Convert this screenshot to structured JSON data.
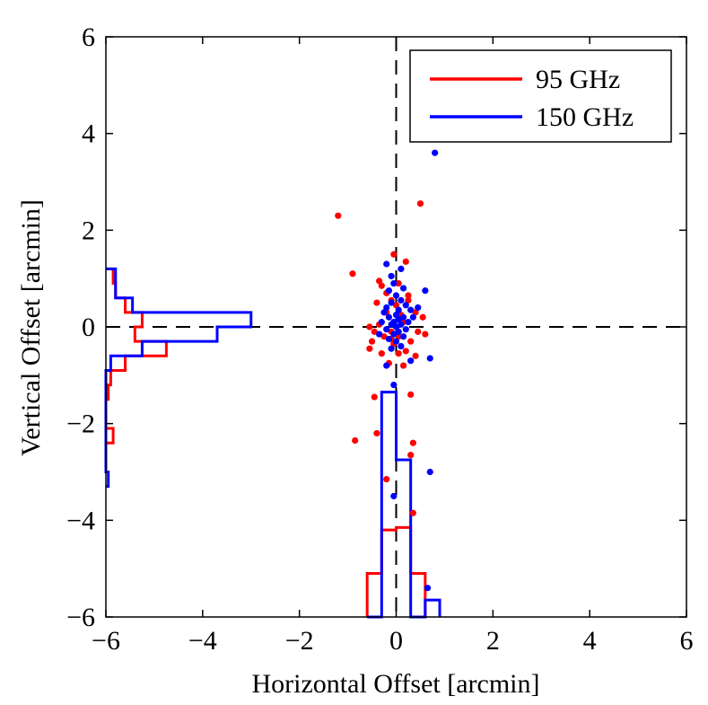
{
  "chart_data": {
    "type": "scatter",
    "xlabel": "Horizontal Offset [arcmin]",
    "ylabel": "Vertical Offset [arcmin]",
    "xlim": [
      -6,
      6
    ],
    "ylim": [
      -6,
      6
    ],
    "xticks": [
      -6,
      -4,
      -2,
      0,
      2,
      4,
      6
    ],
    "yticks": [
      -6,
      -4,
      -2,
      0,
      2,
      4,
      6
    ],
    "tick_labels": {
      "x": [
        "−6",
        "−4",
        "−2",
        "0",
        "2",
        "4",
        "6"
      ],
      "y": [
        "−6",
        "−4",
        "−2",
        "0",
        "2",
        "4",
        "6"
      ]
    },
    "legend": {
      "placement": "top-right",
      "entries": [
        {
          "name": "95 GHz",
          "color": "#ff0000"
        },
        {
          "name": "150 GHz",
          "color": "#0000ff"
        }
      ]
    },
    "reference_lines": {
      "x": 0,
      "y": 0,
      "style": "dashed",
      "color": "#000000"
    },
    "series": [
      {
        "name": "95 GHz",
        "color": "#ff0000",
        "points": [
          [
            -1.2,
            2.3
          ],
          [
            0.5,
            2.55
          ],
          [
            -0.9,
            1.1
          ],
          [
            -0.05,
            1.5
          ],
          [
            0.2,
            1.35
          ],
          [
            -0.35,
            0.95
          ],
          [
            -0.3,
            0.85
          ],
          [
            0.05,
            0.9
          ],
          [
            -0.1,
            0.55
          ],
          [
            0.25,
            0.55
          ],
          [
            -0.4,
            0.5
          ],
          [
            0.4,
            0.3
          ],
          [
            -0.55,
            0.0
          ],
          [
            0.55,
            0.2
          ],
          [
            -0.2,
            0.3
          ],
          [
            0.1,
            0.25
          ],
          [
            -0.45,
            -0.1
          ],
          [
            0.45,
            -0.1
          ],
          [
            -0.25,
            -0.2
          ],
          [
            0.3,
            -0.3
          ],
          [
            -0.05,
            -0.35
          ],
          [
            0.2,
            -0.5
          ],
          [
            -0.3,
            -0.55
          ],
          [
            0.4,
            -0.6
          ],
          [
            -0.15,
            -0.75
          ],
          [
            0.15,
            -0.8
          ],
          [
            -0.5,
            -0.3
          ],
          [
            -0.45,
            -1.45
          ],
          [
            0.3,
            -1.4
          ],
          [
            -0.85,
            -2.35
          ],
          [
            -0.4,
            -2.2
          ],
          [
            0.35,
            -2.4
          ],
          [
            0.3,
            -2.65
          ],
          [
            -0.2,
            -3.15
          ],
          [
            0.35,
            -3.85
          ],
          [
            -0.1,
            -0.25
          ],
          [
            0.05,
            -0.2
          ],
          [
            -0.35,
            0.05
          ],
          [
            0.15,
            0.1
          ],
          [
            0.0,
            0.45
          ],
          [
            -0.2,
            0.7
          ],
          [
            0.25,
            0.65
          ],
          [
            0.6,
            -0.15
          ],
          [
            -0.55,
            -0.45
          ],
          [
            0.05,
            -0.55
          ],
          [
            -0.1,
            -0.1
          ]
        ],
        "histogram_x": {
          "bin_edges": [
            -0.6,
            -0.3,
            0.0,
            0.3,
            0.6
          ],
          "counts_in_y_units": [
            0.9,
            1.8,
            1.85,
            0.9
          ],
          "baseline": -6
        },
        "histogram_y": {
          "bin_edges": [
            -2.4,
            -2.1,
            -1.5,
            -1.2,
            -0.9,
            -0.6,
            -0.3,
            0.0,
            0.3,
            0.6,
            0.9,
            1.2
          ],
          "counts_in_x_units": [
            0.15,
            0.0,
            0.05,
            0.1,
            0.4,
            1.25,
            0.6,
            0.75,
            0.4,
            0.2,
            0.15
          ],
          "baseline": -6
        }
      },
      {
        "name": "150 GHz",
        "color": "#0000ff",
        "points": [
          [
            0.8,
            3.6
          ],
          [
            -0.2,
            1.3
          ],
          [
            -0.1,
            1.05
          ],
          [
            0.1,
            1.2
          ],
          [
            -0.05,
            0.9
          ],
          [
            0.15,
            0.8
          ],
          [
            -0.15,
            0.75
          ],
          [
            0.0,
            0.65
          ],
          [
            0.1,
            0.55
          ],
          [
            -0.1,
            0.5
          ],
          [
            0.2,
            0.45
          ],
          [
            -0.2,
            0.4
          ],
          [
            0.05,
            0.35
          ],
          [
            0.3,
            0.35
          ],
          [
            -0.25,
            0.3
          ],
          [
            0.0,
            0.25
          ],
          [
            0.15,
            0.2
          ],
          [
            -0.15,
            0.2
          ],
          [
            0.05,
            0.15
          ],
          [
            -0.05,
            0.1
          ],
          [
            0.25,
            0.1
          ],
          [
            -0.3,
            0.1
          ],
          [
            0.1,
            0.05
          ],
          [
            -0.1,
            0.05
          ],
          [
            0.0,
            0.0
          ],
          [
            0.2,
            -0.05
          ],
          [
            -0.2,
            -0.05
          ],
          [
            0.05,
            -0.1
          ],
          [
            -0.05,
            -0.15
          ],
          [
            0.15,
            -0.2
          ],
          [
            -0.15,
            -0.25
          ],
          [
            0.0,
            -0.3
          ],
          [
            0.1,
            -0.4
          ],
          [
            -0.1,
            -0.45
          ],
          [
            0.45,
            0.4
          ],
          [
            0.35,
            0.2
          ],
          [
            -0.35,
            -0.15
          ],
          [
            -0.2,
            -0.8
          ],
          [
            0.7,
            -0.65
          ],
          [
            0.6,
            0.75
          ],
          [
            -0.05,
            -1.2
          ],
          [
            0.7,
            -3.0
          ],
          [
            0.65,
            -5.4
          ],
          [
            -0.05,
            -3.5
          ],
          [
            0.3,
            -0.7
          ]
        ],
        "histogram_x": {
          "bin_edges": [
            -0.6,
            -0.3,
            0.0,
            0.3,
            0.6,
            0.9
          ],
          "counts_in_y_units": [
            0.0,
            4.65,
            3.25,
            0.0,
            0.35
          ],
          "baseline": -6
        },
        "histogram_y": {
          "bin_edges": [
            -3.3,
            -3.0,
            -0.9,
            -0.6,
            -0.3,
            0.0,
            0.3,
            0.6,
            0.9,
            1.2
          ],
          "counts_in_x_units": [
            0.05,
            0.0,
            0.1,
            0.75,
            2.3,
            3.0,
            0.55,
            0.2,
            0.2
          ],
          "baseline": -6
        }
      }
    ]
  }
}
